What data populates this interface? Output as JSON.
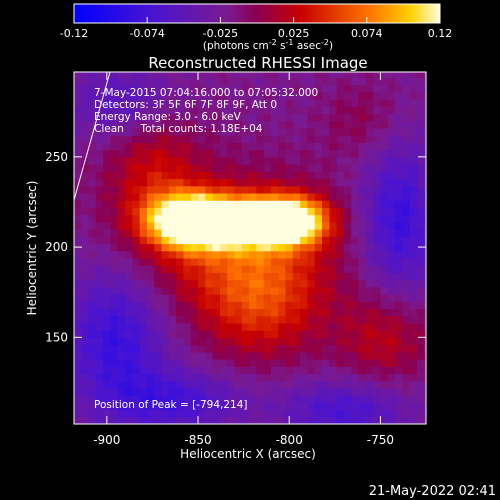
{
  "chart_data": {
    "type": "heatmap",
    "title": "Reconstructed RHESSI Image",
    "xlabel": "Heliocentric X (arcsec)",
    "ylabel": "Heliocentric Y (arcsec)",
    "xlim": [
      -918,
      -725
    ],
    "ylim": [
      102,
      297
    ],
    "xticks": [
      -900,
      -850,
      -800,
      -750
    ],
    "yticks": [
      150,
      200,
      250
    ],
    "colorbar": {
      "min": -0.12,
      "max": 0.12,
      "ticks": [
        "-0.12",
        "-0.074",
        "-0.025",
        "0.025",
        "0.074",
        "0.12"
      ],
      "label_prefix": "(photons cm",
      "label_exp1": "-2",
      "label_mid": " s",
      "label_exp2": "-1",
      "label_mid2": " asec",
      "label_exp3": "-2",
      "label_suffix": ")"
    },
    "annotations": [
      "7-May-2015 07:04:16.000 to 07:05:32.000",
      "Detectors: 3F 5F 6F 7F 8F 9F, Att 0",
      "Energy Range: 3.0 - 6.0 keV",
      "Clean     Total counts: 1.18E+04"
    ],
    "peak_label": "Position of Peak = [-794,214]",
    "peak": [
      -794,
      214
    ],
    "sources": [
      {
        "x": -855,
        "y": 215,
        "sx": 16,
        "sy": 10,
        "amp": 1.0
      },
      {
        "x": -800,
        "y": 215,
        "sx": 14,
        "sy": 9,
        "amp": 1.0
      },
      {
        "x": -828,
        "y": 214,
        "sx": 22,
        "sy": 9,
        "amp": 0.85
      },
      {
        "x": -830,
        "y": 200,
        "sx": 40,
        "sy": 28,
        "amp": 0.45
      },
      {
        "x": -815,
        "y": 168,
        "sx": 22,
        "sy": 22,
        "amp": 0.35
      },
      {
        "x": -748,
        "y": 150,
        "sx": 18,
        "sy": 18,
        "amp": 0.3
      },
      {
        "x": -875,
        "y": 245,
        "sx": 18,
        "sy": 25,
        "amp": 0.3
      },
      {
        "x": -760,
        "y": 270,
        "sx": 15,
        "sy": 15,
        "amp": 0.15
      }
    ],
    "negative_regions": [
      {
        "x": -895,
        "y": 150,
        "sx": 20,
        "sy": 30,
        "amp": -0.45
      },
      {
        "x": -740,
        "y": 215,
        "sx": 15,
        "sy": 30,
        "amp": -0.45
      },
      {
        "x": -770,
        "y": 110,
        "sx": 25,
        "sy": 12,
        "amp": -0.35
      },
      {
        "x": -860,
        "y": 115,
        "sx": 25,
        "sy": 12,
        "amp": -0.35
      },
      {
        "x": -890,
        "y": 280,
        "sx": 20,
        "sy": 15,
        "amp": -0.3
      }
    ]
  },
  "footer": {
    "timestamp": "21-May-2022 02:41"
  }
}
